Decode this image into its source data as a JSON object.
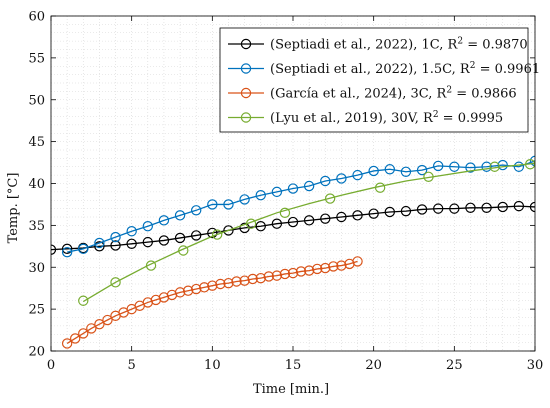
{
  "chart_data": {
    "type": "line",
    "title": "",
    "xlabel": "Time [min.]",
    "ylabel": "Temp. [°C]",
    "xlim": [
      0,
      30
    ],
    "ylim": [
      20,
      60
    ],
    "xticks": [
      0,
      5,
      10,
      15,
      20,
      25,
      30
    ],
    "yticks": [
      20,
      25,
      30,
      35,
      40,
      45,
      50,
      55,
      60
    ],
    "grid": "minor-dotted",
    "legend_position": "top-right",
    "series": [
      {
        "name": "(Septiadi et al., 2022), 1C, R",
        "r2": "0.9870",
        "color": "#000000",
        "x": [
          0,
          1,
          2,
          3,
          4,
          5,
          6,
          7,
          8,
          9,
          10,
          11,
          12,
          13,
          14,
          15,
          16,
          17,
          18,
          19,
          20,
          21,
          22,
          23,
          24,
          25,
          26,
          27,
          28,
          29,
          30
        ],
        "y": [
          32.1,
          32.2,
          32.3,
          32.5,
          32.6,
          32.8,
          33.0,
          33.2,
          33.5,
          33.8,
          34.1,
          34.4,
          34.7,
          34.9,
          35.2,
          35.4,
          35.6,
          35.8,
          36.0,
          36.2,
          36.4,
          36.6,
          36.7,
          36.9,
          37.0,
          37.0,
          37.1,
          37.1,
          37.2,
          37.3,
          37.2
        ]
      },
      {
        "name": "(Septiadi et al., 2022), 1.5C, R",
        "r2": "0.9961",
        "color": "#0072BD",
        "x": [
          1,
          2,
          3,
          4,
          5,
          6,
          7,
          8,
          9,
          10,
          11,
          12,
          13,
          14,
          15,
          16,
          17,
          18,
          19,
          20,
          21,
          22,
          23,
          24,
          25,
          26,
          27,
          28,
          29,
          30
        ],
        "y": [
          31.8,
          32.2,
          32.9,
          33.6,
          34.3,
          34.9,
          35.6,
          36.2,
          36.8,
          37.5,
          37.5,
          38.1,
          38.6,
          39.0,
          39.4,
          39.7,
          40.3,
          40.6,
          41.0,
          41.5,
          41.7,
          41.4,
          41.6,
          42.1,
          42.0,
          41.9,
          42.0,
          42.2,
          42.0,
          42.7
        ]
      },
      {
        "name": "(García et al., 2024), 3C, R",
        "r2": "0.9866",
        "color": "#D95319",
        "x": [
          1,
          1.5,
          2,
          2.5,
          3,
          3.5,
          4,
          4.5,
          5,
          5.5,
          6,
          6.5,
          7,
          7.5,
          8,
          8.5,
          9,
          9.5,
          10,
          10.5,
          11,
          11.5,
          12,
          12.5,
          13,
          13.5,
          14,
          14.5,
          15,
          15.5,
          16,
          16.5,
          17,
          17.5,
          18,
          18.5,
          19
        ],
        "y": [
          20.9,
          21.5,
          22.1,
          22.7,
          23.2,
          23.7,
          24.2,
          24.6,
          25.0,
          25.4,
          25.8,
          26.1,
          26.4,
          26.7,
          27.0,
          27.2,
          27.4,
          27.6,
          27.8,
          28.0,
          28.1,
          28.3,
          28.4,
          28.6,
          28.7,
          28.9,
          29.0,
          29.2,
          29.3,
          29.5,
          29.6,
          29.8,
          29.9,
          30.1,
          30.2,
          30.4,
          30.7
        ]
      },
      {
        "name": "(Lyu et al., 2019), 30V, R",
        "r2": "0.9995",
        "color": "#77AC30",
        "x": [
          2,
          4,
          6,
          8,
          10,
          12,
          14,
          16,
          18,
          20,
          22,
          24,
          26,
          28,
          30
        ],
        "y": [
          25.9,
          28.2,
          30.2,
          32.0,
          33.7,
          35.1,
          36.5,
          37.6,
          38.6,
          39.5,
          40.3,
          40.9,
          41.5,
          42.0,
          42.4
        ],
        "marker_x": [
          2,
          4,
          6.2,
          8.2,
          10.3,
          12.4,
          14.5,
          17.3,
          20.4,
          23.4,
          27.5,
          29.7
        ],
        "marker_y": [
          26.0,
          28.2,
          30.2,
          32.0,
          33.9,
          35.2,
          36.5,
          38.2,
          39.5,
          40.8,
          42.0,
          42.3
        ]
      }
    ]
  }
}
